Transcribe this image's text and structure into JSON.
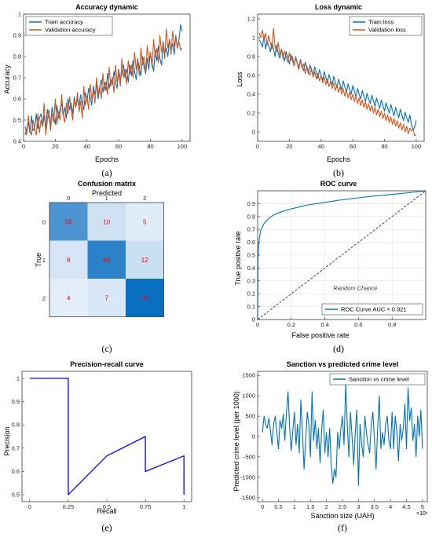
{
  "chart_data": [
    {
      "id": "a",
      "caption": "(a)",
      "type": "line",
      "title": "Accuracy dynamic",
      "xlabel": "Epochs",
      "ylabel": "Accuracy",
      "xlim": [
        0,
        105
      ],
      "ylim": [
        0.4,
        1.0
      ],
      "xticks": [
        0,
        20,
        40,
        60,
        80,
        100
      ],
      "yticks": [
        0.4,
        0.5,
        0.6,
        0.7,
        0.8,
        0.9,
        1.0
      ],
      "ytick_labels": [
        "0.4",
        "0.5",
        "0.6",
        "0.7",
        "0.8",
        "0.9",
        "1"
      ],
      "legend_position": "top-left",
      "series": [
        {
          "name": "Train accuracy",
          "color": "#0072BD",
          "x_start": 1,
          "x_step": 1,
          "values": [
            0.43,
            0.46,
            0.49,
            0.44,
            0.52,
            0.45,
            0.46,
            0.53,
            0.46,
            0.51,
            0.53,
            0.47,
            0.52,
            0.46,
            0.55,
            0.51,
            0.47,
            0.56,
            0.52,
            0.48,
            0.57,
            0.51,
            0.55,
            0.58,
            0.52,
            0.56,
            0.51,
            0.6,
            0.55,
            0.58,
            0.53,
            0.61,
            0.56,
            0.6,
            0.57,
            0.62,
            0.58,
            0.55,
            0.63,
            0.59,
            0.65,
            0.61,
            0.57,
            0.66,
            0.62,
            0.67,
            0.6,
            0.65,
            0.69,
            0.63,
            0.68,
            0.64,
            0.72,
            0.65,
            0.69,
            0.67,
            0.73,
            0.68,
            0.65,
            0.74,
            0.69,
            0.72,
            0.76,
            0.7,
            0.74,
            0.68,
            0.76,
            0.71,
            0.78,
            0.73,
            0.69,
            0.79,
            0.74,
            0.71,
            0.8,
            0.75,
            0.72,
            0.79,
            0.74,
            0.82,
            0.77,
            0.73,
            0.83,
            0.78,
            0.85,
            0.79,
            0.76,
            0.87,
            0.81,
            0.84,
            0.8,
            0.88,
            0.83,
            0.86,
            0.81,
            0.9,
            0.84,
            0.88,
            0.95,
            0.92
          ]
        },
        {
          "name": "Validation accuracy",
          "color": "#D95319",
          "x_start": 1,
          "x_step": 1,
          "values": [
            0.47,
            0.43,
            0.52,
            0.45,
            0.43,
            0.5,
            0.46,
            0.43,
            0.53,
            0.44,
            0.5,
            0.47,
            0.58,
            0.43,
            0.5,
            0.55,
            0.45,
            0.53,
            0.49,
            0.6,
            0.48,
            0.54,
            0.5,
            0.62,
            0.52,
            0.49,
            0.58,
            0.53,
            0.61,
            0.55,
            0.5,
            0.6,
            0.56,
            0.63,
            0.54,
            0.59,
            0.51,
            0.66,
            0.57,
            0.61,
            0.55,
            0.67,
            0.6,
            0.64,
            0.58,
            0.7,
            0.62,
            0.66,
            0.6,
            0.72,
            0.64,
            0.68,
            0.62,
            0.75,
            0.66,
            0.7,
            0.63,
            0.76,
            0.68,
            0.73,
            0.66,
            0.79,
            0.7,
            0.74,
            0.67,
            0.78,
            0.72,
            0.76,
            0.7,
            0.82,
            0.74,
            0.78,
            0.71,
            0.84,
            0.76,
            0.8,
            0.73,
            0.85,
            0.78,
            0.82,
            0.75,
            0.88,
            0.8,
            0.84,
            0.77,
            0.9,
            0.82,
            0.86,
            0.79,
            0.93,
            0.84,
            0.88,
            0.81,
            0.92,
            0.85,
            0.89,
            0.84,
            0.87,
            0.83,
            0.84
          ]
        }
      ]
    },
    {
      "id": "b",
      "caption": "(b)",
      "type": "line",
      "title": "Loss dynamic",
      "xlabel": "Epochs",
      "ylabel": "Loss",
      "xlim": [
        0,
        105
      ],
      "ylim": [
        -0.1,
        1.25
      ],
      "xticks": [
        0,
        20,
        40,
        60,
        80,
        100
      ],
      "yticks": [
        0,
        0.2,
        0.4,
        0.6,
        0.8,
        1.0,
        1.2
      ],
      "ytick_labels": [
        "0",
        "0.2",
        "0.4",
        "0.6",
        "0.8",
        "1",
        "1.2"
      ],
      "legend_position": "top-right",
      "series": [
        {
          "name": "Train loss",
          "color": "#0072BD",
          "x_start": 1,
          "x_step": 1,
          "values": [
            0.98,
            0.95,
            0.9,
            1.02,
            0.88,
            0.96,
            0.92,
            0.85,
            0.95,
            0.88,
            0.8,
            0.92,
            0.84,
            0.78,
            0.88,
            0.82,
            0.75,
            0.85,
            0.79,
            0.72,
            0.82,
            0.76,
            0.7,
            0.8,
            0.73,
            0.68,
            0.77,
            0.7,
            0.65,
            0.74,
            0.68,
            0.62,
            0.71,
            0.65,
            0.6,
            0.69,
            0.63,
            0.57,
            0.66,
            0.6,
            0.55,
            0.64,
            0.58,
            0.52,
            0.61,
            0.55,
            0.5,
            0.59,
            0.53,
            0.47,
            0.56,
            0.5,
            0.45,
            0.54,
            0.48,
            0.42,
            0.51,
            0.45,
            0.4,
            0.49,
            0.43,
            0.37,
            0.46,
            0.4,
            0.35,
            0.44,
            0.38,
            0.32,
            0.41,
            0.35,
            0.3,
            0.39,
            0.33,
            0.27,
            0.36,
            0.3,
            0.25,
            0.34,
            0.28,
            0.22,
            0.31,
            0.25,
            0.2,
            0.29,
            0.23,
            0.17,
            0.26,
            0.2,
            0.15,
            0.24,
            0.18,
            0.12,
            0.21,
            0.15,
            0.1,
            0.18,
            0.08,
            0.02,
            0.05,
            0.12
          ]
        },
        {
          "name": "Validation loss",
          "color": "#D95319",
          "x_start": 1,
          "x_step": 1,
          "values": [
            1.05,
            1.0,
            1.08,
            0.98,
            1.05,
            0.92,
            1.02,
            0.95,
            0.88,
            1.1,
            0.9,
            0.85,
            0.95,
            0.82,
            0.88,
            0.78,
            0.86,
            0.8,
            0.74,
            0.84,
            0.76,
            0.8,
            0.7,
            0.78,
            0.72,
            0.66,
            0.76,
            0.68,
            0.72,
            0.62,
            0.7,
            0.64,
            0.6,
            0.68,
            0.58,
            0.64,
            0.56,
            0.62,
            0.54,
            0.6,
            0.52,
            0.58,
            0.5,
            0.56,
            0.48,
            0.54,
            0.46,
            0.52,
            0.44,
            0.5,
            0.42,
            0.48,
            0.4,
            0.46,
            0.38,
            0.44,
            0.36,
            0.42,
            0.34,
            0.4,
            0.32,
            0.38,
            0.3,
            0.36,
            0.28,
            0.34,
            0.26,
            0.32,
            0.24,
            0.3,
            0.22,
            0.28,
            0.2,
            0.26,
            0.18,
            0.24,
            0.16,
            0.22,
            0.14,
            0.2,
            0.12,
            0.18,
            0.1,
            0.16,
            0.08,
            0.14,
            0.06,
            0.12,
            0.04,
            0.1,
            0.02,
            0.08,
            0.0,
            0.06,
            -0.02,
            0.04,
            0.01,
            0.03,
            -0.04,
            -0.03
          ]
        }
      ]
    },
    {
      "id": "c",
      "caption": "(c)",
      "type": "heatmap",
      "title": "Confusion matrix",
      "xlabel": "Predicted",
      "ylabel": "True",
      "x_categories": [
        "0",
        "1",
        "2"
      ],
      "y_categories": [
        "0",
        "1",
        "2"
      ],
      "matrix": [
        [
          50,
          10,
          5
        ],
        [
          8,
          60,
          12
        ],
        [
          4,
          7,
          70
        ]
      ],
      "value_color": "#FF0000",
      "colormap": [
        "#E3EEF9",
        "#0B6FC1"
      ]
    },
    {
      "id": "d",
      "caption": "(d)",
      "type": "line",
      "title": "ROC curve",
      "xlabel": "False positive rate",
      "ylabel": "True positive rate",
      "xlim": [
        0,
        1.0
      ],
      "ylim": [
        0,
        1.0
      ],
      "xticks": [
        0,
        0.2,
        0.4,
        0.6,
        0.8
      ],
      "yticks": [
        0,
        0.1,
        0.2,
        0.3,
        0.4,
        0.5,
        0.6,
        0.7,
        0.8,
        0.9
      ],
      "grid": true,
      "annotation": "Random Chance",
      "legend_position": "bottom-right",
      "series": [
        {
          "name": "ROC Curve  AUC = 0.921",
          "color": "#0072BD",
          "x": [
            0,
            0.002,
            0.005,
            0.01,
            0.02,
            0.04,
            0.07,
            0.1,
            0.15,
            0.2,
            0.3,
            0.4,
            0.5,
            0.6,
            0.7,
            0.8,
            0.9,
            1.0
          ],
          "y": [
            0,
            0.45,
            0.56,
            0.63,
            0.7,
            0.75,
            0.79,
            0.815,
            0.84,
            0.86,
            0.89,
            0.91,
            0.93,
            0.945,
            0.96,
            0.972,
            0.985,
            1.0
          ]
        },
        {
          "name": "",
          "color": "#555555",
          "dashed": true,
          "x": [
            0,
            1.0
          ],
          "y": [
            0,
            1.0
          ]
        }
      ]
    },
    {
      "id": "e",
      "caption": "(e)",
      "type": "line",
      "title": "Precision-recall curve",
      "xlabel": "Recall",
      "ylabel": "Precision",
      "xlim": [
        -0.05,
        1.05
      ],
      "ylim": [
        0.47,
        1.03
      ],
      "xticks": [
        0,
        0.25,
        0.5,
        0.75,
        1
      ],
      "yticks": [
        0.5,
        0.6,
        0.7,
        0.8,
        0.9,
        1.0
      ],
      "ytick_labels": [
        "0.5",
        "0.6",
        "0.7",
        "0.8",
        "0.9",
        "1"
      ],
      "series": [
        {
          "name": "",
          "color": "#0000FF",
          "x": [
            0,
            0.25,
            0.25,
            0.5,
            0.75,
            0.75,
            1.0,
            1.0
          ],
          "y": [
            1.0,
            1.0,
            0.5,
            0.6667,
            0.75,
            0.6,
            0.6667,
            0.5
          ]
        }
      ]
    },
    {
      "id": "f",
      "caption": "(f)",
      "type": "line",
      "title": "Sanction vs predicted crime level",
      "xlabel": "Sanction size (UAH)",
      "ylabel": "Predicted crime level (per 1000)",
      "xlim": [
        -0.15,
        5.15
      ],
      "ylim": [
        -1600,
        1600
      ],
      "xticks": [
        0,
        0.5,
        1,
        1.5,
        2,
        2.5,
        3,
        3.5,
        4,
        4.5,
        5
      ],
      "xtick_labels": [
        "0",
        "0.5",
        "1",
        "1.5",
        "2",
        "2.5",
        "3",
        "3.5",
        "4",
        "4.5",
        "5"
      ],
      "xaxis_exponent": "×10⁶",
      "yticks": [
        -1500,
        -1000,
        -500,
        0,
        500,
        1000,
        1500
      ],
      "legend_position": "top-right",
      "series": [
        {
          "name": "Sanction vs crime level",
          "color": "#0072BD",
          "x_start": 0,
          "x_step": 0.05,
          "values": [
            100,
            500,
            300,
            200,
            450,
            150,
            -200,
            300,
            500,
            100,
            -300,
            400,
            200,
            550,
            -100,
            600,
            1100,
            200,
            -350,
            150,
            600,
            -200,
            300,
            -400,
            900,
            100,
            -800,
            -100,
            600,
            300,
            -500,
            1100,
            -100,
            400,
            -300,
            200,
            -650,
            150,
            650,
            -400,
            100,
            -500,
            200,
            -700,
            -1150,
            -800,
            -1000,
            100,
            -300,
            200,
            500,
            -200,
            1300,
            300,
            -500,
            600,
            0,
            -700,
            100,
            650,
            -1200,
            300,
            -200,
            -500,
            500,
            100,
            -200,
            -400,
            300,
            600,
            -100,
            -800,
            200,
            1000,
            -300,
            100,
            -200,
            300,
            500,
            -100,
            -300,
            600,
            -300,
            500,
            100,
            -600,
            300,
            -100,
            200,
            800,
            -300,
            1200,
            400,
            700,
            -100,
            300,
            -500,
            500,
            0,
            650,
            -300
          ]
        }
      ]
    }
  ]
}
